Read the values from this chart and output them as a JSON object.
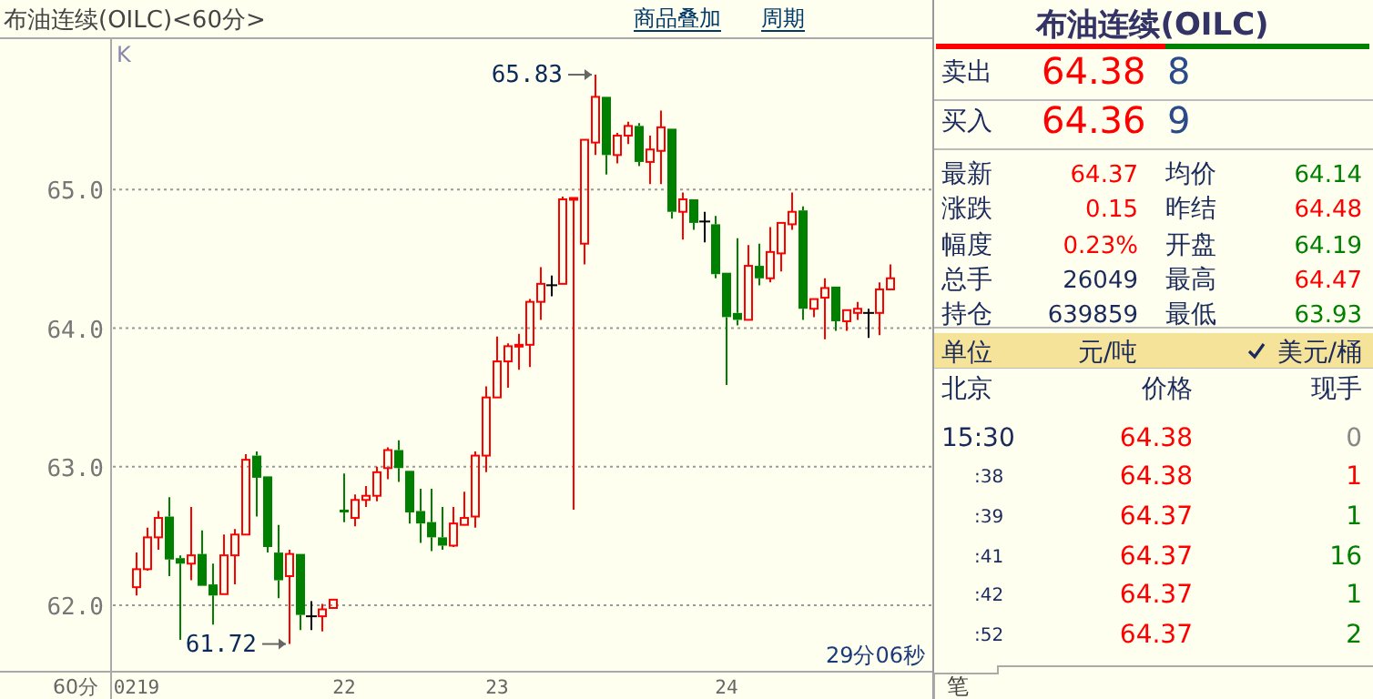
{
  "chart_data": [
    {
      "type": "candlestick",
      "title": "布油连续(OILC)<60分>",
      "categories": [
        "0219",
        null,
        null,
        null,
        null,
        null,
        null,
        null,
        null,
        null,
        null,
        null,
        null,
        null,
        null,
        null,
        null,
        null,
        null,
        "22",
        null,
        null,
        null,
        null,
        null,
        null,
        null,
        null,
        null,
        null,
        null,
        null,
        null,
        "23",
        null,
        null,
        null,
        null,
        null,
        null,
        null,
        null,
        null,
        null,
        null,
        null,
        null,
        null,
        null,
        null,
        null,
        null,
        null,
        null,
        "24",
        null,
        null,
        null,
        null,
        null,
        null,
        null,
        null,
        null,
        null,
        null,
        null,
        null,
        null,
        null
      ],
      "ohlc": [
        [
          62.13,
          62.38,
          62.07,
          62.26
        ],
        [
          62.26,
          62.56,
          62.25,
          62.49
        ],
        [
          62.49,
          62.68,
          62.4,
          62.63
        ],
        [
          62.64,
          62.78,
          62.21,
          62.33
        ],
        [
          62.34,
          62.36,
          61.75,
          62.3
        ],
        [
          62.3,
          62.71,
          62.18,
          62.36
        ],
        [
          62.37,
          62.54,
          62.14,
          62.14
        ],
        [
          62.15,
          62.3,
          61.86,
          62.07
        ],
        [
          62.08,
          62.51,
          62.08,
          62.36
        ],
        [
          62.36,
          62.55,
          62.15,
          62.51
        ],
        [
          62.51,
          63.09,
          62.51,
          63.05
        ],
        [
          63.08,
          63.11,
          62.64,
          62.92
        ],
        [
          62.93,
          62.93,
          62.38,
          62.42
        ],
        [
          62.38,
          62.58,
          62.05,
          62.18
        ],
        [
          62.21,
          62.4,
          61.72,
          62.37
        ],
        [
          62.37,
          62.37,
          61.82,
          61.93
        ],
        [
          61.92,
          62.03,
          61.82,
          61.92
        ],
        [
          61.92,
          62.01,
          61.81,
          61.97
        ],
        [
          61.98,
          62.04,
          61.98,
          62.04
        ],
        [
          62.69,
          62.95,
          62.6,
          62.67
        ],
        [
          62.63,
          62.8,
          62.57,
          62.76
        ],
        [
          62.76,
          62.86,
          62.71,
          62.79
        ],
        [
          62.79,
          63.0,
          62.75,
          62.96
        ],
        [
          62.99,
          63.14,
          62.91,
          63.12
        ],
        [
          63.12,
          63.19,
          62.89,
          62.99
        ],
        [
          62.97,
          62.97,
          62.59,
          62.67
        ],
        [
          62.68,
          62.84,
          62.45,
          62.59
        ],
        [
          62.6,
          62.84,
          62.39,
          62.49
        ],
        [
          62.49,
          62.71,
          62.4,
          62.43
        ],
        [
          62.43,
          62.71,
          62.42,
          62.59
        ],
        [
          62.58,
          62.82,
          62.58,
          62.63
        ],
        [
          62.64,
          63.11,
          62.56,
          63.08
        ],
        [
          63.08,
          63.58,
          62.96,
          63.5
        ],
        [
          63.5,
          63.94,
          63.5,
          63.76
        ],
        [
          63.76,
          63.89,
          63.57,
          63.87
        ],
        [
          63.87,
          63.96,
          63.7,
          63.88
        ],
        [
          63.88,
          64.21,
          63.72,
          64.19
        ],
        [
          64.19,
          64.44,
          64.06,
          64.32
        ],
        [
          64.31,
          64.38,
          64.23,
          64.31
        ],
        [
          64.32,
          64.95,
          64.32,
          64.93
        ],
        [
          64.93,
          64.94,
          62.69,
          64.94
        ],
        [
          64.61,
          65.36,
          64.46,
          65.36
        ],
        [
          65.34,
          65.83,
          65.25,
          65.67
        ],
        [
          65.67,
          65.67,
          65.11,
          65.25
        ],
        [
          65.25,
          65.41,
          65.19,
          65.39
        ],
        [
          65.39,
          65.49,
          65.33,
          65.46
        ],
        [
          65.46,
          65.48,
          65.17,
          65.2
        ],
        [
          65.2,
          65.39,
          65.04,
          65.29
        ],
        [
          65.28,
          65.57,
          65.04,
          65.45
        ],
        [
          65.44,
          65.44,
          64.79,
          64.84
        ],
        [
          64.84,
          64.98,
          64.64,
          64.93
        ],
        [
          64.93,
          64.93,
          64.71,
          64.76
        ],
        [
          64.77,
          64.84,
          64.62,
          64.77
        ],
        [
          64.75,
          64.81,
          64.36,
          64.39
        ],
        [
          64.4,
          64.4,
          63.59,
          64.08
        ],
        [
          64.11,
          64.65,
          64.02,
          64.06
        ],
        [
          64.06,
          64.6,
          64.06,
          64.45
        ],
        [
          64.45,
          64.61,
          64.31,
          64.36
        ],
        [
          64.36,
          64.73,
          64.33,
          64.55
        ],
        [
          64.54,
          64.76,
          64.41,
          64.76
        ],
        [
          64.75,
          64.98,
          64.71,
          64.84
        ],
        [
          64.85,
          64.88,
          64.06,
          64.14
        ],
        [
          64.14,
          64.21,
          64.08,
          64.21
        ],
        [
          64.22,
          64.36,
          63.92,
          64.29
        ],
        [
          64.3,
          64.3,
          63.98,
          64.05
        ],
        [
          64.05,
          64.13,
          63.98,
          64.13
        ],
        [
          64.11,
          64.19,
          64.06,
          64.14
        ],
        [
          64.11,
          64.14,
          63.93,
          64.11
        ],
        [
          64.11,
          64.33,
          63.95,
          64.28
        ],
        [
          64.28,
          64.46,
          64.28,
          64.36
        ]
      ],
      "ylim": [
        61.52,
        66.08
      ],
      "yticks": [
        {
          "value": 62,
          "label": "62.0"
        },
        {
          "value": 63,
          "label": "63.0"
        },
        {
          "value": 64,
          "label": "64.0"
        },
        {
          "value": 65,
          "label": "65.0"
        }
      ],
      "grid": "y",
      "annotations": [
        "K",
        "60分",
        "29分06秒",
        "商品叠加",
        "周期",
        "61.72",
        "65.83"
      ]
    },
    {
      "type": "other",
      "title": "布油连续(OILC)",
      "annotations": [
        "卖出",
        "64.38",
        "8",
        "买入",
        "64.36",
        "9",
        "最新",
        "64.37",
        "均价",
        "64.14",
        "涨跌",
        "0.15",
        "昨结",
        "64.48",
        "幅度",
        "0.23%",
        "开盘",
        "64.19",
        "总手",
        "26049",
        "最高",
        "64.47",
        "持仓",
        "639859",
        "最低",
        "63.93",
        "单位",
        "元/吨",
        "美元/桶",
        "北京",
        "价格",
        "现手",
        "15:30",
        "64.38",
        "0",
        ":38",
        "64.38",
        "1",
        ":39",
        "64.37",
        "1",
        ":41",
        "64.37",
        "16",
        ":42",
        "64.37",
        "1",
        ":52",
        "64.37",
        "2",
        "笔"
      ]
    }
  ]
}
